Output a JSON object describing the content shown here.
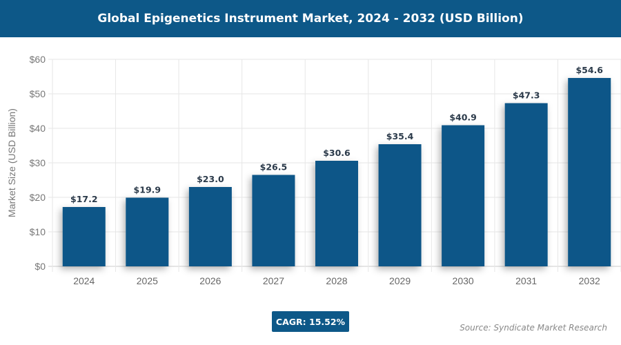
{
  "header": {
    "title": "Global Epigenetics Instrument Market, 2024 - 2032 (USD Billion)"
  },
  "chart_data": {
    "type": "bar",
    "title": "Global Epigenetics Instrument Market, 2024 - 2032 (USD Billion)",
    "xlabel": "",
    "ylabel": "Market Size (USD Billion)",
    "categories": [
      "2024",
      "2025",
      "2026",
      "2027",
      "2028",
      "2029",
      "2030",
      "2031",
      "2032"
    ],
    "values": [
      17.2,
      19.9,
      23.0,
      26.5,
      30.6,
      35.4,
      40.9,
      47.3,
      54.6
    ],
    "data_labels": [
      "$17.2",
      "$19.9",
      "$23.0",
      "$26.5",
      "$30.6",
      "$35.4",
      "$40.9",
      "$47.3",
      "$54.6"
    ],
    "ylim": [
      0,
      60
    ],
    "yticks": [
      "$0",
      "$10",
      "$20",
      "$30",
      "$40",
      "$50",
      "$60"
    ],
    "grid": true,
    "bar_color": "#0b5788"
  },
  "footer": {
    "cagr": "CAGR: 15.52%",
    "source": "Source: Syndicate Market Research"
  }
}
